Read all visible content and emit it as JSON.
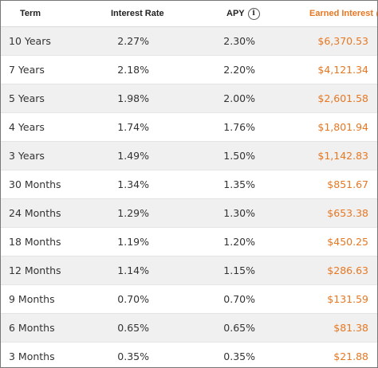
{
  "header": {
    "term": "Term",
    "rate": "Interest Rate",
    "apy": "APY",
    "earned": "Earned Interest",
    "info_icon": "info-icon",
    "earned_color": "#e87722"
  },
  "rows": [
    {
      "term": "10 Years",
      "rate": "2.27%",
      "apy": "2.30%",
      "earned": "$6,370.53"
    },
    {
      "term": "7 Years",
      "rate": "2.18%",
      "apy": "2.20%",
      "earned": "$4,121.34"
    },
    {
      "term": "5 Years",
      "rate": "1.98%",
      "apy": "2.00%",
      "earned": "$2,601.58"
    },
    {
      "term": "4 Years",
      "rate": "1.74%",
      "apy": "1.76%",
      "earned": "$1,801.94"
    },
    {
      "term": "3 Years",
      "rate": "1.49%",
      "apy": "1.50%",
      "earned": "$1,142.83"
    },
    {
      "term": "30 Months",
      "rate": "1.34%",
      "apy": "1.35%",
      "earned": "$851.67"
    },
    {
      "term": "24 Months",
      "rate": "1.29%",
      "apy": "1.30%",
      "earned": "$653.38"
    },
    {
      "term": "18 Months",
      "rate": "1.19%",
      "apy": "1.20%",
      "earned": "$450.25"
    },
    {
      "term": "12 Months",
      "rate": "1.14%",
      "apy": "1.15%",
      "earned": "$286.63"
    },
    {
      "term": "9 Months",
      "rate": "0.70%",
      "apy": "0.70%",
      "earned": "$131.59"
    },
    {
      "term": "6 Months",
      "rate": "0.65%",
      "apy": "0.65%",
      "earned": "$81.38"
    },
    {
      "term": "3 Months",
      "rate": "0.35%",
      "apy": "0.35%",
      "earned": "$21.88"
    }
  ]
}
